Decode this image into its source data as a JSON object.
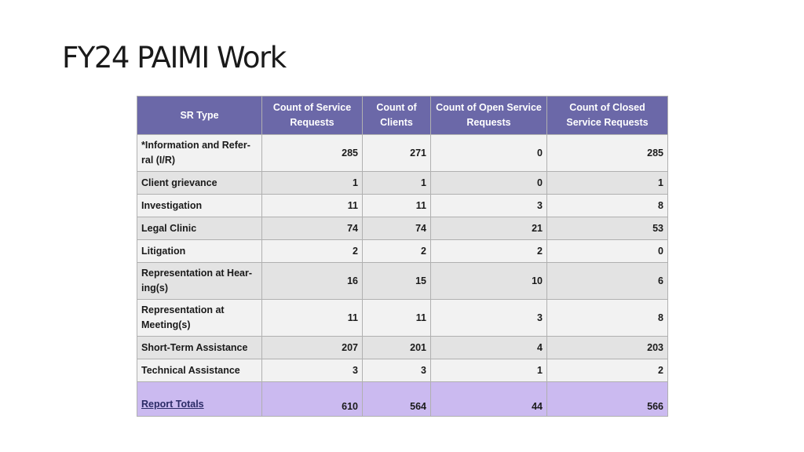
{
  "slide": {
    "title": "FY24 PAIMI Work"
  },
  "table": {
    "headers": [
      "SR Type",
      "Count of Service Requests",
      "Count of Clients",
      "Count of Open Service Requests",
      "Count of Closed Service Requests"
    ],
    "rows": [
      {
        "type": "*Information and Refer-ral (I/R)",
        "service_requests": "285",
        "clients": "271",
        "open": "0",
        "closed": "285"
      },
      {
        "type": "Client grievance",
        "service_requests": "1",
        "clients": "1",
        "open": "0",
        "closed": "1"
      },
      {
        "type": "Investigation",
        "service_requests": "11",
        "clients": "11",
        "open": "3",
        "closed": "8"
      },
      {
        "type": "Legal Clinic",
        "service_requests": "74",
        "clients": "74",
        "open": "21",
        "closed": "53"
      },
      {
        "type": "Litigation",
        "service_requests": "2",
        "clients": "2",
        "open": "2",
        "closed": "0"
      },
      {
        "type": "Representation at Hear-ing(s)",
        "service_requests": "16",
        "clients": "15",
        "open": "10",
        "closed": "6"
      },
      {
        "type": "Representation at Meeting(s)",
        "service_requests": "11",
        "clients": "11",
        "open": "3",
        "closed": "8"
      },
      {
        "type": "Short-Term Assistance",
        "service_requests": "207",
        "clients": "201",
        "open": "4",
        "closed": "203"
      },
      {
        "type": "Technical Assistance",
        "service_requests": "3",
        "clients": "3",
        "open": "1",
        "closed": "2"
      }
    ],
    "totals": {
      "label": "Report Totals",
      "service_requests": "610",
      "clients": "564",
      "open": "44",
      "closed": "566"
    },
    "colors": {
      "header_bg": "#6b68a8",
      "header_text": "#ffffff",
      "totals_bg": "#cbbaf0",
      "row_light": "#f2f2f2",
      "row_dark": "#e3e3e3"
    }
  }
}
